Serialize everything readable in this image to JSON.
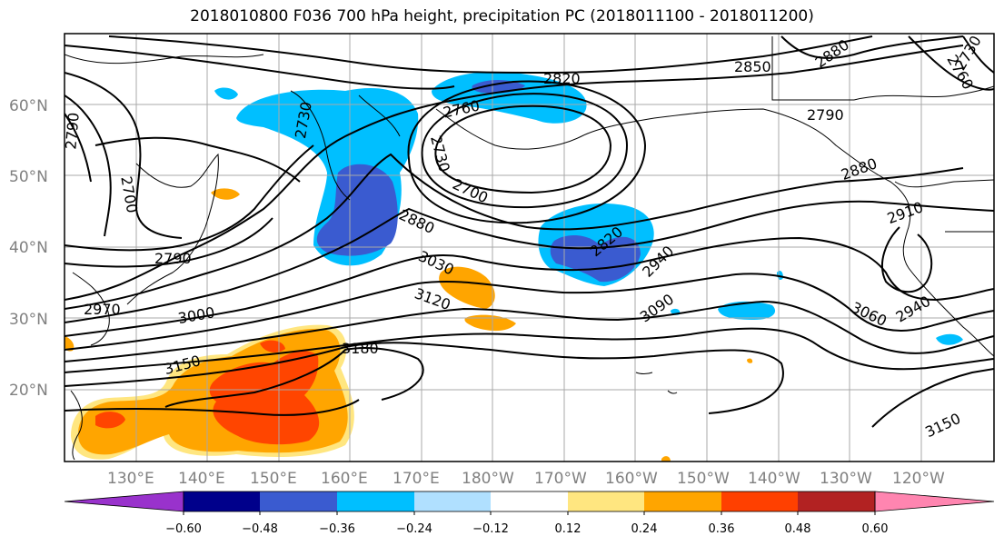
{
  "title": "2018010800 F036 700 hPa height, precipitation PC (2018011100 - 2018011200)",
  "lat_labels": [
    "60°N",
    "50°N",
    "40°N",
    "30°N",
    "20°N"
  ],
  "lon_labels": [
    "130°E",
    "140°E",
    "150°E",
    "160°E",
    "170°E",
    "180°W",
    "170°W",
    "160°W",
    "150°W",
    "140°W",
    "130°W",
    "120°W"
  ],
  "contour_labels": [
    "2790",
    "2700",
    "2730",
    "2820",
    "2850",
    "2880",
    "2760",
    "2730",
    "2700",
    "2880",
    "2790",
    "2970",
    "3000",
    "3030",
    "3120",
    "3150",
    "3180",
    "2820",
    "2940",
    "3090",
    "2790",
    "2880",
    "2910",
    "2940",
    "3060",
    "3150",
    "2760",
    "2730"
  ],
  "colorbar": {
    "ticks": [
      "−0.60",
      "−0.48",
      "−0.36",
      "−0.24",
      "−0.12",
      "0.12",
      "0.24",
      "0.36",
      "0.48",
      "0.60"
    ],
    "colors": [
      "#9932cc",
      "#00008b",
      "#3a5bd0",
      "#00bfff",
      "#b0e0ff",
      "#ffffff",
      "#ffe680",
      "#ffa500",
      "#ff4000",
      "#b22222",
      "#ff85b0"
    ]
  },
  "palette": {
    "neg_light": "#00bfff",
    "neg_mid": "#3a5bd0",
    "pos_light": "#ffa500",
    "pos_mid": "#ff4500",
    "pos_pale": "#ffe680"
  }
}
